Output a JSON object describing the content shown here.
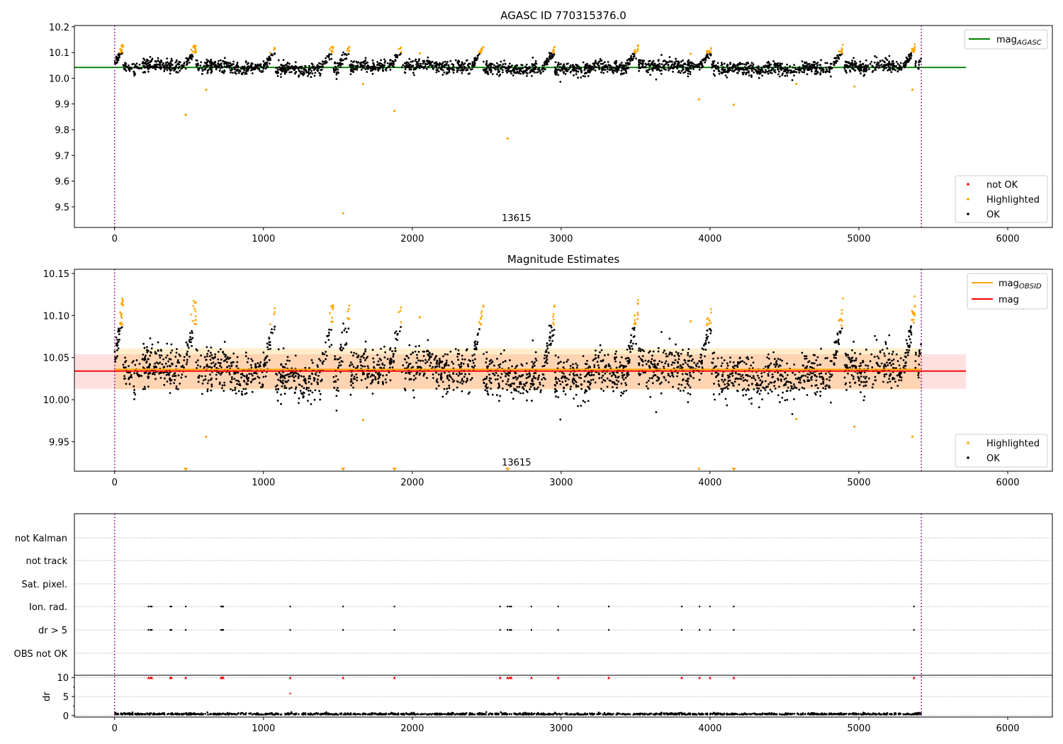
{
  "chart_data": [
    {
      "type": "scatter",
      "title": "AGASC ID 770315376.0",
      "ylim": [
        9.42,
        10.205
      ],
      "xlim": [
        -270,
        6300
      ],
      "yticks": [
        "9.5",
        "9.6",
        "9.7",
        "9.8",
        "9.9",
        "10.0",
        "10.1",
        "10.2"
      ],
      "xticks": [
        "0",
        "1000",
        "2000",
        "3000",
        "4000",
        "5000",
        "6000"
      ],
      "obsid_annotation": "13615",
      "obsid_annotation_x": 2700,
      "obs_boundaries": [
        0,
        5420
      ],
      "mag_agasc": 10.042,
      "mag_agasc_xrange": [
        -270,
        5720
      ],
      "legend_top": {
        "position": "upper right",
        "entries": [
          {
            "main": "mag",
            "sub": "AGASC",
            "color": "#008000"
          }
        ]
      },
      "legend_bottom": {
        "position": "lower right",
        "entries": [
          {
            "label": "not OK",
            "color": "#ff0000"
          },
          {
            "label": "Highlighted",
            "color": "#ffa500"
          },
          {
            "label": "OK",
            "color": "#000000"
          }
        ]
      },
      "outliers": [
        {
          "x": 478,
          "y": 9.858
        },
        {
          "x": 615,
          "y": 9.955
        },
        {
          "x": 1535,
          "y": 9.475
        },
        {
          "x": 1880,
          "y": 9.873
        },
        {
          "x": 2640,
          "y": 9.766
        },
        {
          "x": 3925,
          "y": 9.918
        },
        {
          "x": 4160,
          "y": 9.897
        },
        {
          "x": 1670,
          "y": 9.978
        },
        {
          "x": 4580,
          "y": 9.978
        },
        {
          "x": 4970,
          "y": 9.968
        },
        {
          "x": 5360,
          "y": 9.955
        },
        {
          "x": 2050,
          "y": 10.097
        },
        {
          "x": 3870,
          "y": 10.095
        }
      ]
    },
    {
      "type": "scatter",
      "title": "Magnitude Estimates",
      "ylim": [
        9.915,
        10.155
      ],
      "xlim": [
        -270,
        6300
      ],
      "yticks": [
        "9.95",
        "10.00",
        "10.05",
        "10.10",
        "10.15"
      ],
      "xticks": [
        "0",
        "1000",
        "2000",
        "3000",
        "4000",
        "5000",
        "6000"
      ],
      "obsid_annotation": "13615",
      "mag": 10.034,
      "mag_band": [
        10.013,
        10.054
      ],
      "mag_xrange": [
        -270,
        5720
      ],
      "mag_obsid": 10.036,
      "mag_obsid_band": [
        10.012,
        10.061
      ],
      "mag_obsid_xrange": [
        0,
        5420
      ],
      "legend_top": {
        "position": "upper right",
        "entries": [
          {
            "main": "mag",
            "sub": "OBSID",
            "color": "#ffa500"
          },
          {
            "main": "mag",
            "sub": "",
            "color": "#ff0000"
          }
        ]
      },
      "legend_bottom": {
        "position": "lower right",
        "entries": [
          {
            "label": "Highlighted",
            "color": "#ffa500"
          },
          {
            "label": "OK",
            "color": "#000000"
          }
        ]
      },
      "below_range_markers": [
        478,
        1535,
        1880,
        2640,
        4160
      ],
      "outliers": [
        {
          "x": 615,
          "y": 9.956
        },
        {
          "x": 1670,
          "y": 9.976
        },
        {
          "x": 4580,
          "y": 9.977
        },
        {
          "x": 4970,
          "y": 9.968
        },
        {
          "x": 5360,
          "y": 9.956
        },
        {
          "x": 2050,
          "y": 10.098
        },
        {
          "x": 3870,
          "y": 10.093
        },
        {
          "x": 3925,
          "y": 9.918
        }
      ]
    },
    {
      "type": "scatter",
      "title": "",
      "xlim": [
        -270,
        6300
      ],
      "xticks": [
        "0",
        "1000",
        "2000",
        "3000",
        "4000",
        "5000",
        "6000"
      ],
      "flag_labels": [
        "not Kalman",
        "not track",
        "Sat. pixel.",
        "Ion. rad.",
        "dr > 5",
        "OBS not OK"
      ],
      "flag_times": [
        228,
        242,
        250,
        375,
        382,
        478,
        715,
        722,
        730,
        1180,
        1535,
        1880,
        2590,
        2640,
        2655,
        2665,
        2800,
        2980,
        3320,
        3810,
        3930,
        4000,
        4160,
        5370
      ],
      "dr_ylabel": "dr",
      "dr_yticks": [
        "0",
        "5",
        "10"
      ],
      "dr_ylim": [
        -0.4,
        10.6
      ],
      "dr_extra_point": {
        "x": 1180,
        "y": 5.8
      },
      "dr_typical": 0.4
    }
  ],
  "series_meta": {
    "peaks": [
      40,
      530,
      1060,
      1450,
      1560,
      1910,
      2460,
      2940,
      3500,
      3990,
      4880,
      5360
    ],
    "peak_heights": [
      10.118,
      10.105,
      10.1,
      10.105,
      10.102,
      10.102,
      10.11,
      10.1,
      10.115,
      10.1,
      10.112,
      10.108
    ],
    "x_end": 5420
  }
}
